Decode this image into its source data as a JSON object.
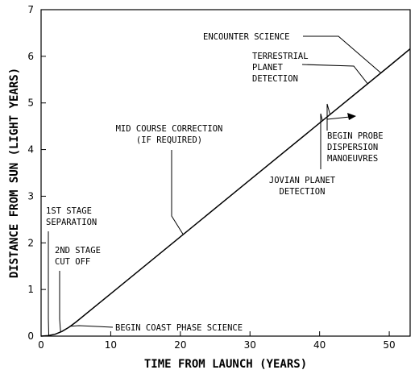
{
  "chart_data": {
    "type": "line",
    "xlabel": "TIME FROM LAUNCH (YEARS)",
    "ylabel": "DISTANCE FROM SUN (LIGHT YEARS)",
    "xlim": [
      0,
      53
    ],
    "ylim": [
      0,
      7
    ],
    "xticks": [
      0,
      10,
      20,
      30,
      40,
      50
    ],
    "yticks": [
      0,
      1,
      2,
      3,
      4,
      5,
      6,
      7
    ],
    "grid": false,
    "series": [
      {
        "x": [
          0,
          1,
          2,
          3,
          4,
          5,
          10,
          20,
          30,
          40,
          50,
          53
        ],
        "y": [
          0,
          0.01,
          0.04,
          0.1,
          0.19,
          0.3,
          0.91,
          2.13,
          3.35,
          4.57,
          5.79,
          6.16
        ]
      }
    ],
    "annotations": [
      {
        "id": "first-stage",
        "lines": [
          "1ST STAGE",
          "SEPARATION"
        ],
        "x": 1.1
      },
      {
        "id": "second-stage",
        "lines": [
          "2ND STAGE",
          "CUT OFF"
        ],
        "x": 2.8
      },
      {
        "id": "coast-science",
        "lines": [
          "BEGIN COAST PHASE SCIENCE"
        ],
        "x": 4.2
      },
      {
        "id": "mid-course",
        "lines": [
          "MID COURSE CORRECTION",
          "(IF REQUIRED)"
        ],
        "x": 20.4
      },
      {
        "id": "jovian",
        "lines": [
          "JOVIAN PLANET",
          "DETECTION"
        ],
        "x": 40.4
      },
      {
        "id": "probe-dispersion",
        "lines": [
          "BEGIN PROBE",
          "DISPERSION",
          "MANOEUVRES"
        ],
        "x": 41.5
      },
      {
        "id": "terrestrial",
        "lines": [
          "TERRESTRIAL",
          "PLANET",
          "DETECTION"
        ],
        "x": 46.9
      },
      {
        "id": "encounter",
        "lines": [
          "ENCOUNTER SCIENCE"
        ],
        "x": 48.8
      }
    ]
  }
}
